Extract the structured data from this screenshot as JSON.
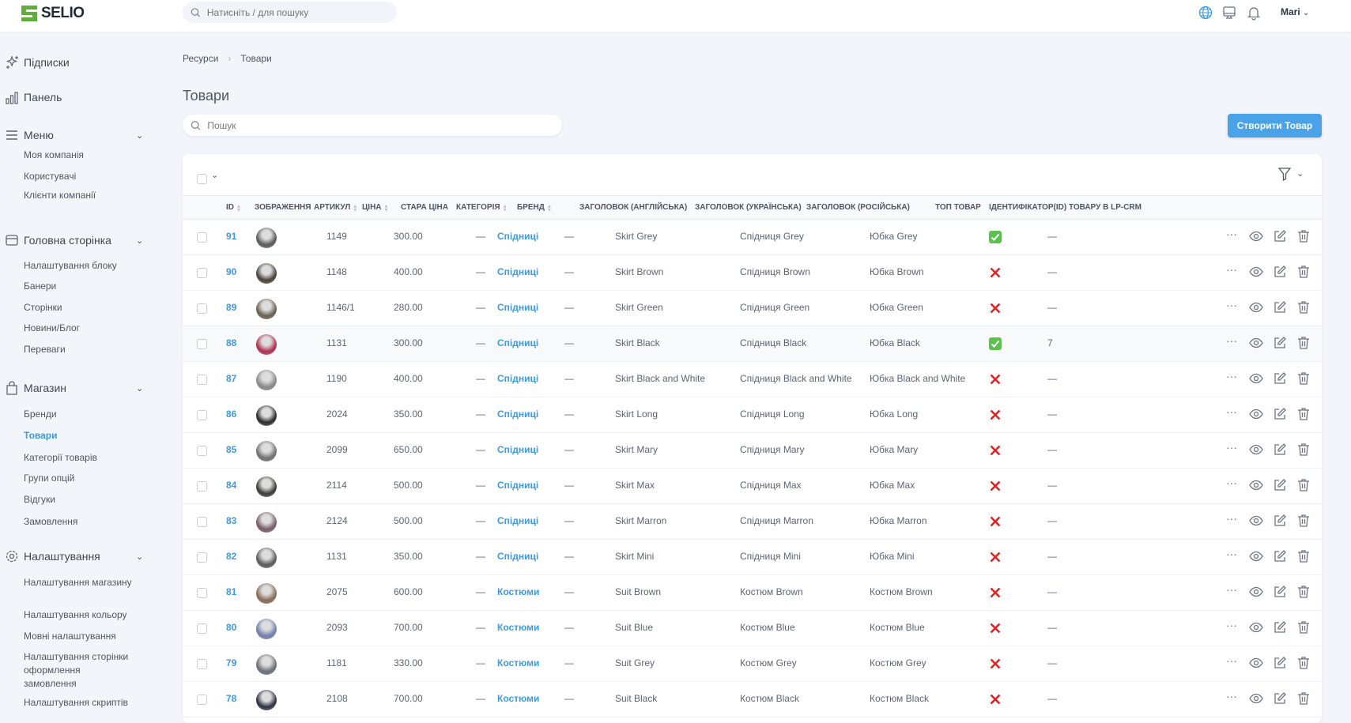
{
  "app": {
    "brand": "SELIO",
    "search_placeholder": "Натисніть / для пошуку",
    "user": "Mari",
    "accent": "#3b9be0"
  },
  "sidebar": {
    "top": [
      {
        "label": "Підписки",
        "icon": "sparkles-icon"
      },
      {
        "label": "Панель",
        "icon": "bar-chart-icon"
      }
    ],
    "groups": [
      {
        "label": "Меню",
        "icon": "menu-icon",
        "items": [
          "Моя компанія",
          "Користувачі",
          "Клієнти компанії"
        ]
      },
      {
        "label": "Головна сторінка",
        "icon": "window-icon",
        "items": [
          "Налаштування блоку",
          "Банери",
          "Сторінки",
          "Новини/Блог",
          "Переваги"
        ]
      },
      {
        "label": "Магазин",
        "icon": "shopping-bag-icon",
        "items": [
          "Бренди",
          "Товари",
          "Категорії товарів",
          "Групи опцій",
          "Відгуки",
          "Замовлення"
        ]
      },
      {
        "label": "Налаштування",
        "icon": "gear-icon",
        "items": [
          "Налаштування магазину",
          "Налаштування кольору",
          "Мовні налаштування",
          "Налаштування сторінки оформлення замовлення",
          "Налаштування скриптів"
        ]
      }
    ],
    "active": "Товари"
  },
  "breadcrumb": [
    "Ресурси",
    "Товари"
  ],
  "page": {
    "title": "Товари",
    "search_placeholder": "Пошук",
    "create_button": "Створити Товар"
  },
  "table": {
    "columns": [
      "ID",
      "ЗОБРАЖЕННЯ",
      "АРТИКУЛ",
      "ЦІНА",
      "СТАРА ЦІНА",
      "КАТЕГОРІЯ",
      "БРЕНД",
      "ЗАГОЛОВОК (АНГЛІЙСЬКА)",
      "ЗАГОЛОВОК (УКРАЇНСЬКА)",
      "ЗАГОЛОВОК (РОСІЙСЬКА)",
      "ТОП ТОВАР",
      "ІДЕНТИФІКАТОР(ID) ТОВАРУ В LP-CRM"
    ],
    "rows": [
      {
        "id": "91",
        "sku": "1149",
        "price": "300.00",
        "old": "—",
        "cat": "Спідниці",
        "brand": "—",
        "en": "Skirt Grey",
        "ua": "Спідниця Grey",
        "ru": "Юбка Grey",
        "top": true,
        "lp": "—"
      },
      {
        "id": "90",
        "sku": "1148",
        "price": "400.00",
        "old": "—",
        "cat": "Спідниці",
        "brand": "—",
        "en": "Skirt Brown",
        "ua": "Спідниця Brown",
        "ru": "Юбка Brown",
        "top": false,
        "lp": "—"
      },
      {
        "id": "89",
        "sku": "1146/1",
        "price": "280.00",
        "old": "—",
        "cat": "Спідниці",
        "brand": "—",
        "en": "Skirt Green",
        "ua": "Спідниця Green",
        "ru": "Юбка Green",
        "top": false,
        "lp": "—"
      },
      {
        "id": "88",
        "sku": "1131",
        "price": "300.00",
        "old": "—",
        "cat": "Спідниці",
        "brand": "—",
        "en": "Skirt Black",
        "ua": "Спідниця Black",
        "ru": "Юбка Black",
        "top": true,
        "lp": "7"
      },
      {
        "id": "87",
        "sku": "1190",
        "price": "400.00",
        "old": "—",
        "cat": "Спідниці",
        "brand": "—",
        "en": "Skirt Black and White",
        "ua": "Спідниця Black and White",
        "ru": "Юбка Black and White",
        "top": false,
        "lp": "—"
      },
      {
        "id": "86",
        "sku": "2024",
        "price": "350.00",
        "old": "—",
        "cat": "Спідниці",
        "brand": "—",
        "en": "Skirt Long",
        "ua": "Спідниця Long",
        "ru": "Юбка Long",
        "top": false,
        "lp": "—"
      },
      {
        "id": "85",
        "sku": "2099",
        "price": "650.00",
        "old": "—",
        "cat": "Спідниці",
        "brand": "—",
        "en": "Skirt Mary",
        "ua": "Спідниця Mary",
        "ru": "Юбка Mary",
        "top": false,
        "lp": "—"
      },
      {
        "id": "84",
        "sku": "2114",
        "price": "500.00",
        "old": "—",
        "cat": "Спідниці",
        "brand": "—",
        "en": "Skirt Max",
        "ua": "Спідниця Max",
        "ru": "Юбка Max",
        "top": false,
        "lp": "—"
      },
      {
        "id": "83",
        "sku": "2124",
        "price": "500.00",
        "old": "—",
        "cat": "Спідниці",
        "brand": "—",
        "en": "Skirt Marron",
        "ua": "Спідниця Marron",
        "ru": "Юбка Marron",
        "top": false,
        "lp": "—"
      },
      {
        "id": "82",
        "sku": "1131",
        "price": "350.00",
        "old": "—",
        "cat": "Спідниці",
        "brand": "—",
        "en": "Skirt Mini",
        "ua": "Спідниця Mini",
        "ru": "Юбка Mini",
        "top": false,
        "lp": "—"
      },
      {
        "id": "81",
        "sku": "2075",
        "price": "600.00",
        "old": "—",
        "cat": "Костюми",
        "brand": "—",
        "en": "Suit Brown",
        "ua": "Костюм Brown",
        "ru": "Костюм Brown",
        "top": false,
        "lp": "—"
      },
      {
        "id": "80",
        "sku": "2093",
        "price": "700.00",
        "old": "—",
        "cat": "Костюми",
        "brand": "—",
        "en": "Suit Blue",
        "ua": "Костюм Blue",
        "ru": "Костюм Blue",
        "top": false,
        "lp": "—"
      },
      {
        "id": "79",
        "sku": "1181",
        "price": "330.00",
        "old": "—",
        "cat": "Костюми",
        "brand": "—",
        "en": "Suit Grey",
        "ua": "Костюм Grey",
        "ru": "Костюм Grey",
        "top": false,
        "lp": "—"
      },
      {
        "id": "78",
        "sku": "2108",
        "price": "700.00",
        "old": "—",
        "cat": "Костюми",
        "brand": "—",
        "en": "Suit Black",
        "ua": "Костюм Black",
        "ru": "Костюм Black",
        "top": false,
        "lp": "—"
      }
    ]
  }
}
